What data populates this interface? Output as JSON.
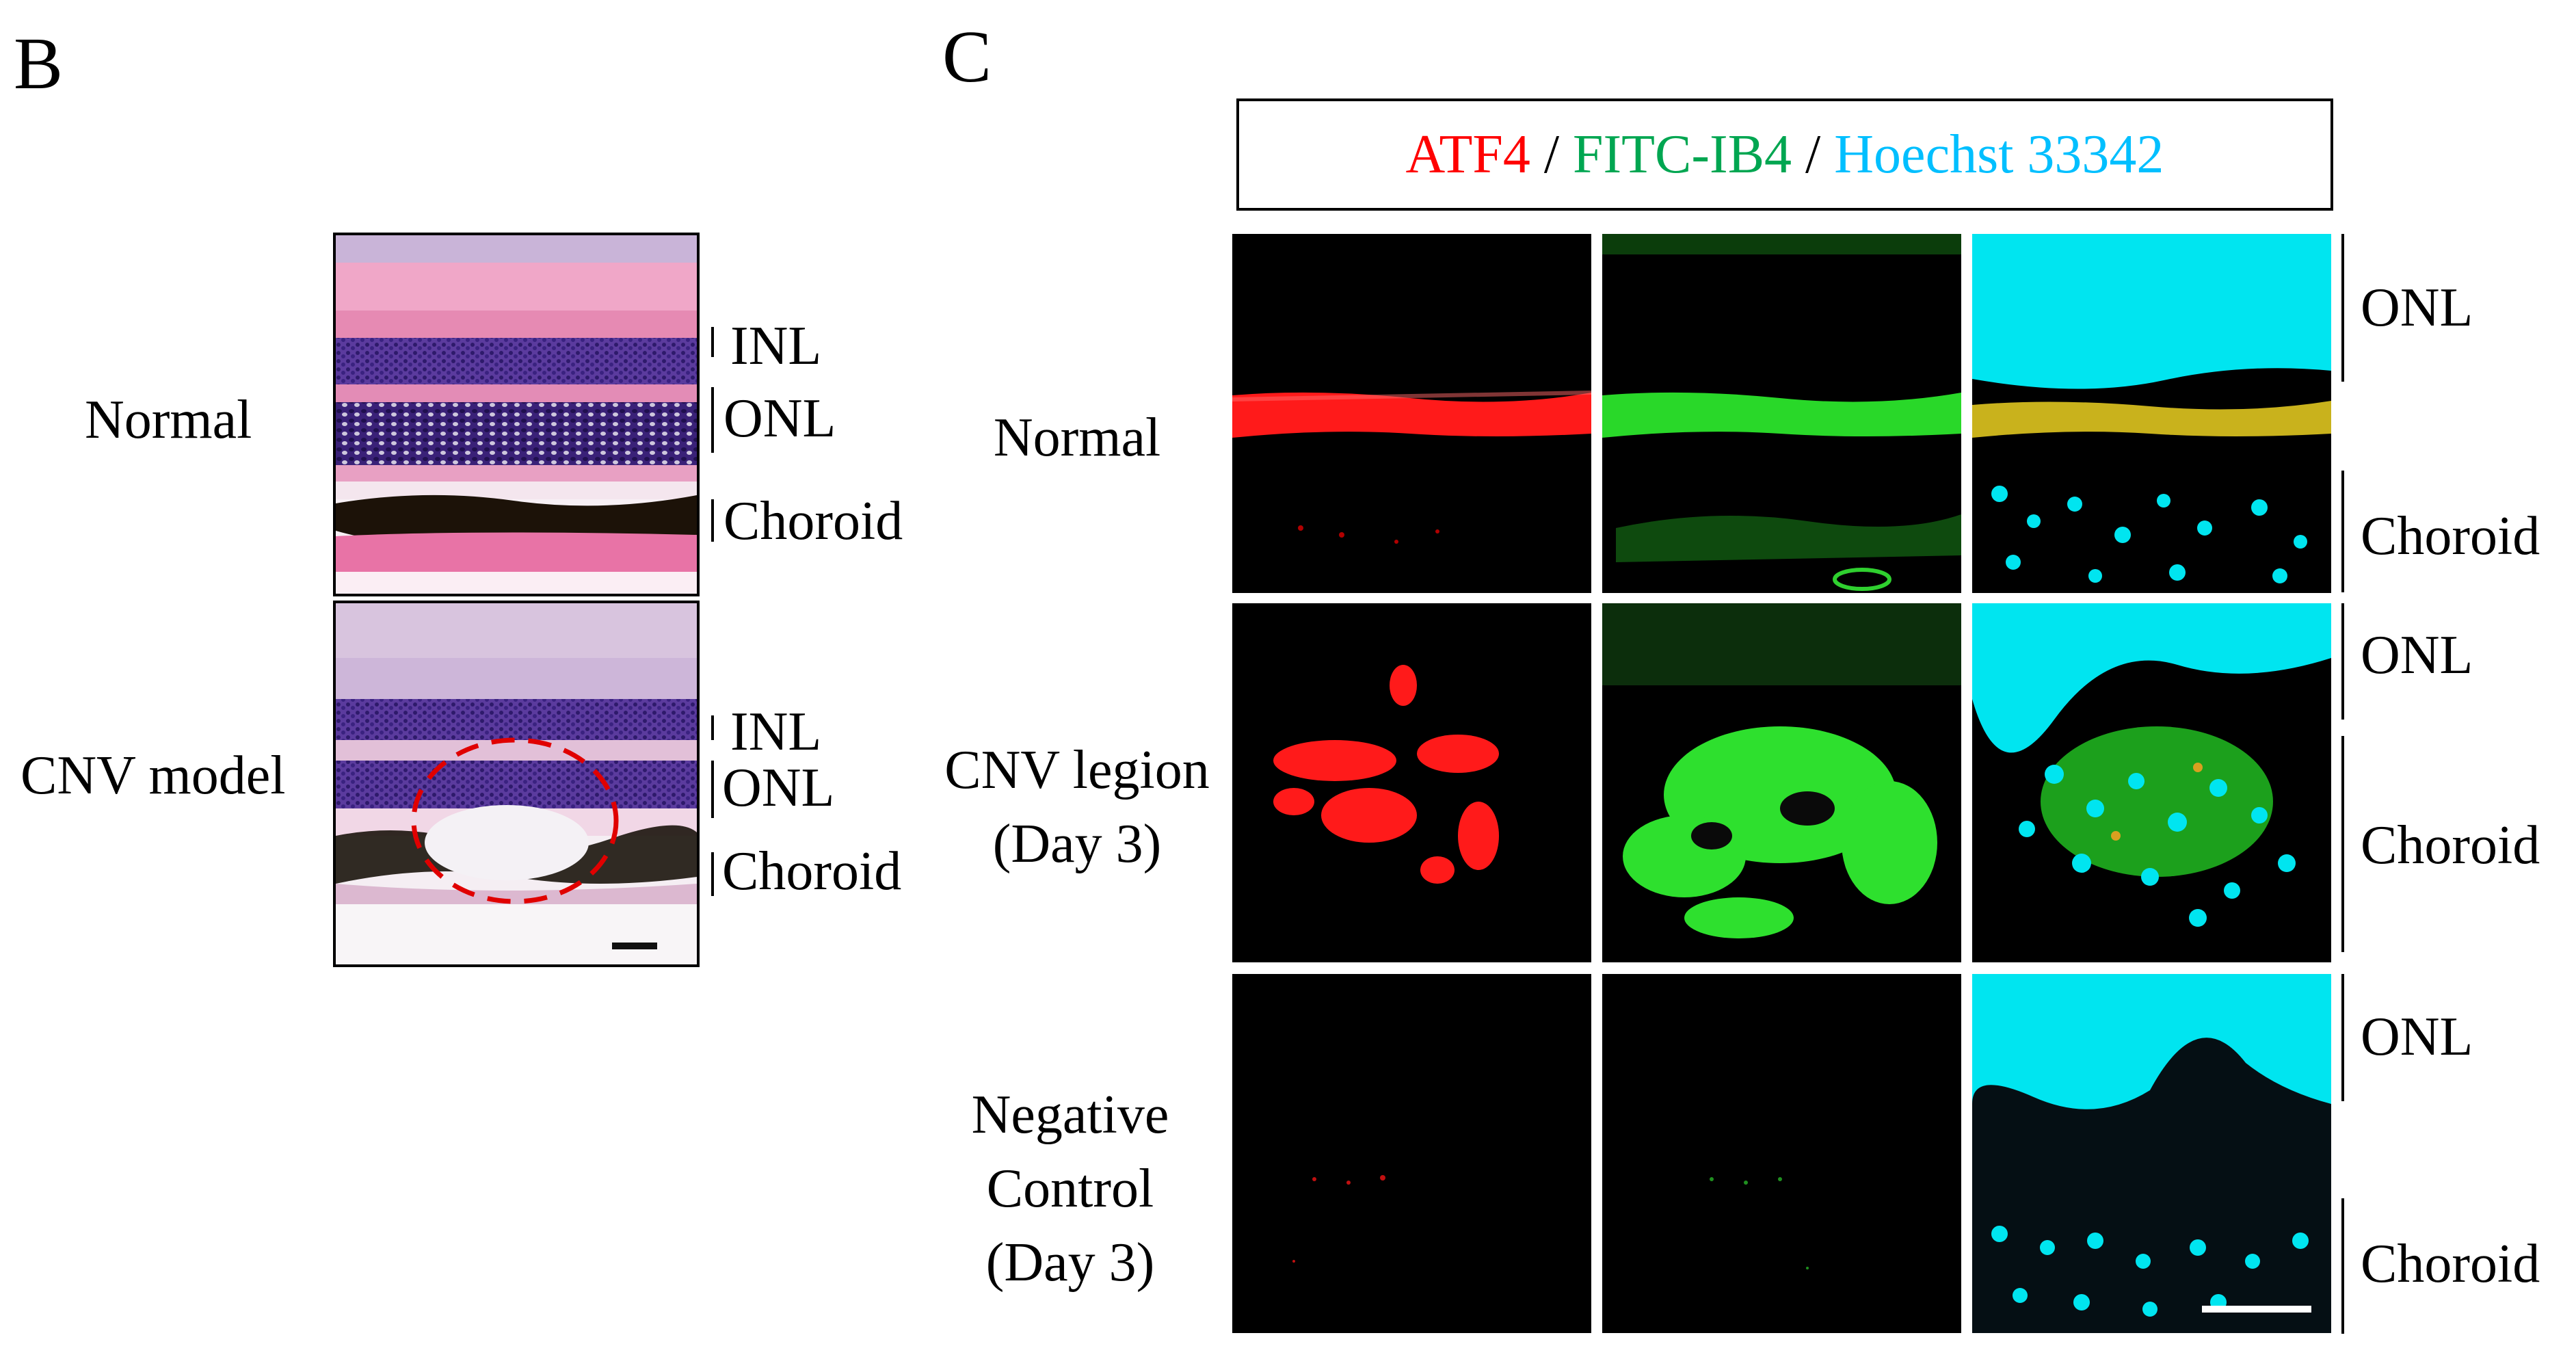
{
  "panel_b": {
    "letter": "B",
    "rows": [
      {
        "label": "Normal",
        "layers": [
          "INL",
          "ONL",
          "Choroid"
        ]
      },
      {
        "label": "CNV model",
        "layers": [
          "INL",
          "ONL",
          "Choroid"
        ]
      }
    ]
  },
  "panel_c": {
    "letter": "C",
    "legend": {
      "separator": " / ",
      "stains": [
        {
          "name": "ATF4",
          "color": "#ff0000"
        },
        {
          "name": "FITC-IB4",
          "color": "#00a651"
        },
        {
          "name": "Hoechst 33342",
          "color": "#00bfff"
        }
      ]
    },
    "rows": [
      {
        "label_lines": [
          "Normal"
        ],
        "right_labels": [
          "ONL",
          "Choroid"
        ]
      },
      {
        "label_lines": [
          "CNV legion",
          "(Day 3)"
        ],
        "right_labels": [
          "ONL",
          "Choroid"
        ]
      },
      {
        "label_lines": [
          "Negative",
          "Control",
          "(Day 3)"
        ],
        "right_labels": [
          "ONL",
          "Choroid"
        ]
      }
    ]
  },
  "colors": {
    "he_pink": "#e88fb6",
    "he_purple": "#4a2d8f",
    "atf4_red": "#ff1a1a",
    "ib4_green": "#22dd22",
    "hoechst_cyan": "#00e5f0",
    "circle_red": "#e00000"
  }
}
